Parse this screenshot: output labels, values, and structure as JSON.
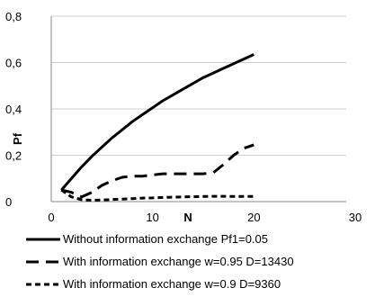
{
  "chart_data": {
    "type": "line",
    "title": "",
    "xlabel": "N",
    "ylabel": "Pf",
    "xlim": [
      0,
      30
    ],
    "ylim": [
      0,
      0.8
    ],
    "x_ticks": [
      0,
      10,
      20,
      30
    ],
    "x_tick_labels": [
      "0",
      "10",
      "20",
      "30"
    ],
    "y_ticks": [
      0,
      0.2,
      0.4,
      0.6,
      0.8
    ],
    "y_tick_labels": [
      "0",
      "0,2",
      "0,4",
      "0,6",
      "0,8"
    ],
    "grid": "horizontal",
    "legend_position": "bottom",
    "series": [
      {
        "name": "Without information exchange Pf1=0.05",
        "color": "#000000",
        "dash": "solid",
        "x": [
          1,
          2,
          3,
          4,
          5,
          6,
          7,
          8,
          9,
          10,
          11,
          12,
          13,
          14,
          15,
          16,
          17,
          18,
          19,
          20
        ],
        "y": [
          0.05,
          0.1,
          0.15,
          0.195,
          0.235,
          0.275,
          0.31,
          0.345,
          0.375,
          0.405,
          0.435,
          0.46,
          0.485,
          0.51,
          0.535,
          0.555,
          0.575,
          0.595,
          0.615,
          0.635
        ]
      },
      {
        "name": "With information exchange w=0.95 D=13430",
        "color": "#000000",
        "dash": "long",
        "x": [
          1,
          2,
          3,
          4,
          5,
          6,
          7,
          8,
          9,
          10,
          11,
          12,
          13,
          14,
          15,
          16,
          17,
          18,
          19,
          20
        ],
        "y": [
          0.05,
          0.04,
          0.02,
          0.04,
          0.07,
          0.09,
          0.105,
          0.11,
          0.11,
          0.115,
          0.12,
          0.12,
          0.12,
          0.12,
          0.12,
          0.125,
          0.16,
          0.2,
          0.23,
          0.245
        ]
      },
      {
        "name": "With information exchange w=0.9 D=9360",
        "color": "#000000",
        "dash": "short",
        "x": [
          1,
          2,
          3,
          4,
          5,
          6,
          7,
          8,
          9,
          10,
          11,
          12,
          13,
          14,
          15,
          16,
          17,
          18,
          19,
          20
        ],
        "y": [
          0.05,
          0.02,
          0.008,
          0.006,
          0.007,
          0.009,
          0.011,
          0.013,
          0.015,
          0.016,
          0.018,
          0.019,
          0.02,
          0.021,
          0.022,
          0.023,
          0.023,
          0.022,
          0.022,
          0.022
        ]
      }
    ]
  }
}
